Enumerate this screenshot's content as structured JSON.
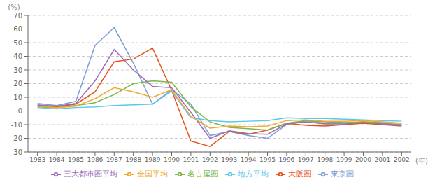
{
  "chart_data": {
    "type": "line",
    "ylabel": "(%)",
    "xlabel": "(年)",
    "x": [
      1983,
      1984,
      1985,
      1986,
      1987,
      1988,
      1989,
      1990,
      1991,
      1992,
      1993,
      1994,
      1995,
      1996,
      1997,
      1998,
      1999,
      2000,
      2001,
      2002
    ],
    "xlim": [
      1982.5,
      2002.5
    ],
    "xticks": [
      1983,
      1984,
      1985,
      1986,
      1987,
      1988,
      1989,
      1990,
      1991,
      1992,
      1993,
      1994,
      1995,
      1996,
      1997,
      1998,
      1999,
      2000,
      2001,
      2002
    ],
    "ylim": [
      -30,
      70
    ],
    "yticks": [
      -30,
      -20,
      -10,
      0,
      10,
      20,
      30,
      40,
      50,
      60,
      70
    ],
    "grid": true,
    "legend": "bottom",
    "series": [
      {
        "name": "東京圏",
        "color": "#7b9fd4",
        "values": [
          5.5,
          4.0,
          7.0,
          48.0,
          61.0,
          35.0,
          5.0,
          15.5,
          5.0,
          -18.0,
          -15.0,
          -18.0,
          -20.0,
          -10.0,
          -7.0,
          -9.0,
          -9.0,
          -8.0,
          -9.0,
          -10.0
        ]
      },
      {
        "name": "大阪圏",
        "color": "#e8501a",
        "values": [
          4.0,
          3.0,
          5.0,
          14.0,
          36.0,
          38.0,
          46.0,
          15.0,
          -22.0,
          -26.0,
          -15.0,
          -17.0,
          -14.0,
          -9.0,
          -10.5,
          -11.0,
          -10.0,
          -9.0,
          -10.0,
          -11.0
        ]
      },
      {
        "name": "名古屋圏",
        "color": "#7ab648",
        "values": [
          3.0,
          2.5,
          4.0,
          6.0,
          12.0,
          20.0,
          22.0,
          21.0,
          3.0,
          -8.0,
          -12.0,
          -13.0,
          -14.0,
          -9.0,
          -7.0,
          -8.0,
          -8.5,
          -8.0,
          -8.5,
          -9.0
        ]
      },
      {
        "name": "三大都市圏平均",
        "color": "#9b6bb5",
        "values": [
          4.5,
          3.5,
          5.5,
          22.0,
          45.0,
          30.0,
          18.0,
          17.0,
          -1.0,
          -20.0,
          -14.5,
          -16.5,
          -17.0,
          -9.5,
          -8.0,
          -9.5,
          -9.5,
          -8.5,
          -9.5,
          -10.5
        ]
      },
      {
        "name": "地方平均",
        "color": "#5bc8e8",
        "values": [
          2.5,
          1.5,
          2.5,
          3.0,
          4.0,
          4.5,
          5.0,
          14.5,
          -5.0,
          -7.0,
          -8.0,
          -7.5,
          -7.0,
          -5.0,
          -5.5,
          -5.5,
          -6.0,
          -6.5,
          -7.0,
          -7.5
        ]
      },
      {
        "name": "全国平均",
        "color": "#f0a830",
        "values": [
          3.5,
          2.5,
          3.5,
          9.0,
          17.0,
          14.0,
          10.0,
          15.5,
          -4.0,
          -12.5,
          -11.0,
          -11.5,
          -11.0,
          -7.0,
          -6.5,
          -7.5,
          -7.5,
          -7.0,
          -8.0,
          -9.0
        ]
      }
    ]
  }
}
